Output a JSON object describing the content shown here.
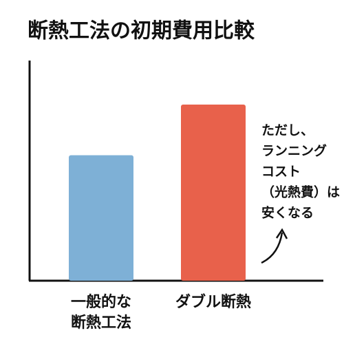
{
  "chart_data": {
    "type": "bar",
    "title": "断熱工法の初期費用比較",
    "categories": [
      [
        "一般的な",
        "断熱工法"
      ],
      [
        "ダブル断熱"
      ]
    ],
    "values": [
      57,
      80
    ],
    "colors": [
      "#7eb0d6",
      "#e8614b"
    ],
    "ylim": [
      0,
      100
    ],
    "annotation": [
      "ただし、",
      "ランニング",
      "コスト",
      "（光熱費）は",
      "安くなる"
    ]
  }
}
